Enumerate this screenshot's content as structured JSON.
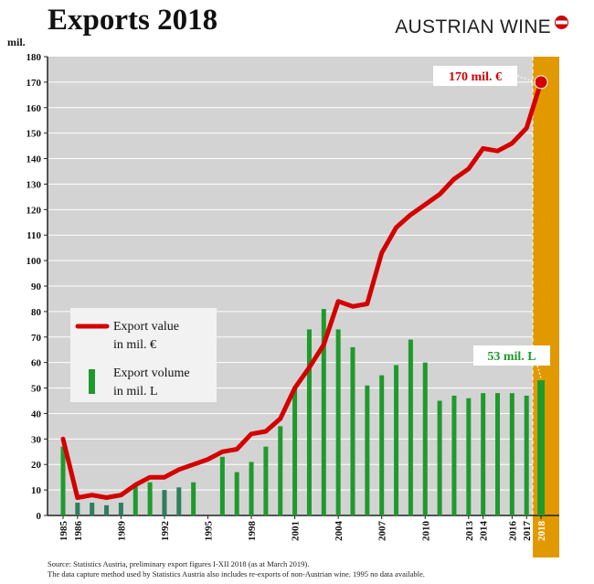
{
  "title": "Exports 2018",
  "brand": "AUSTRIAN WINE",
  "source": [
    "Source: Statistics Austria, preliminary export figures I-XII 2018 (as at March 2019).",
    "The data capture method used by Statistics Austria also includes re-exports of non-Austrian wine. 1995 no data available."
  ],
  "colors": {
    "plot_bg": "#d3d3d3",
    "value_line": "#d40000",
    "volume_bar": "#1e9a2c",
    "volume_bar_dark": "#2e7d5e",
    "highlight_year": "#e09a00"
  },
  "chart_data": {
    "type": "bar",
    "title": "Exports 2018",
    "ylabel": "mil.",
    "ylim": [
      0,
      180
    ],
    "yticks": [
      0,
      10,
      20,
      30,
      40,
      50,
      60,
      70,
      80,
      90,
      100,
      110,
      120,
      130,
      140,
      150,
      160,
      170,
      180
    ],
    "years": [
      1985,
      1986,
      1987,
      1988,
      1989,
      1990,
      1991,
      1992,
      1993,
      1994,
      1995,
      1996,
      1997,
      1998,
      1999,
      2000,
      2001,
      2002,
      2003,
      2004,
      2005,
      2006,
      2007,
      2008,
      2009,
      2010,
      2011,
      2012,
      2013,
      2014,
      2015,
      2016,
      2017,
      2018
    ],
    "xtick_labels": [
      "1985",
      "1986",
      "1989",
      "1992",
      "1995",
      "1998",
      "2001",
      "2004",
      "2007",
      "2010",
      "2013",
      "2014",
      "2016",
      "2017",
      "2018"
    ],
    "highlight_year": 2018,
    "legend": [
      "Export value in mil. €",
      "Export volume in mil. L"
    ],
    "series": [
      {
        "name": "Export value in mil. €",
        "kind": "line",
        "values": [
          30,
          7,
          8,
          7,
          8,
          12,
          15,
          15,
          18,
          20,
          22,
          25,
          26,
          32,
          33,
          38,
          50,
          58,
          67,
          84,
          82,
          83,
          103,
          113,
          118,
          122,
          126,
          132,
          136,
          144,
          143,
          146,
          152,
          170
        ]
      },
      {
        "name": "Export volume in mil. L",
        "kind": "bar",
        "values": [
          27,
          5,
          5,
          4,
          5,
          12,
          13,
          10,
          11,
          13,
          null,
          23,
          17,
          21,
          27,
          35,
          50,
          73,
          81,
          73,
          66,
          51,
          55,
          59,
          69,
          60,
          45,
          47,
          46,
          48,
          48,
          48,
          47,
          53
        ]
      }
    ],
    "annotations": [
      "170 mil. €",
      "53 mil. L"
    ]
  }
}
